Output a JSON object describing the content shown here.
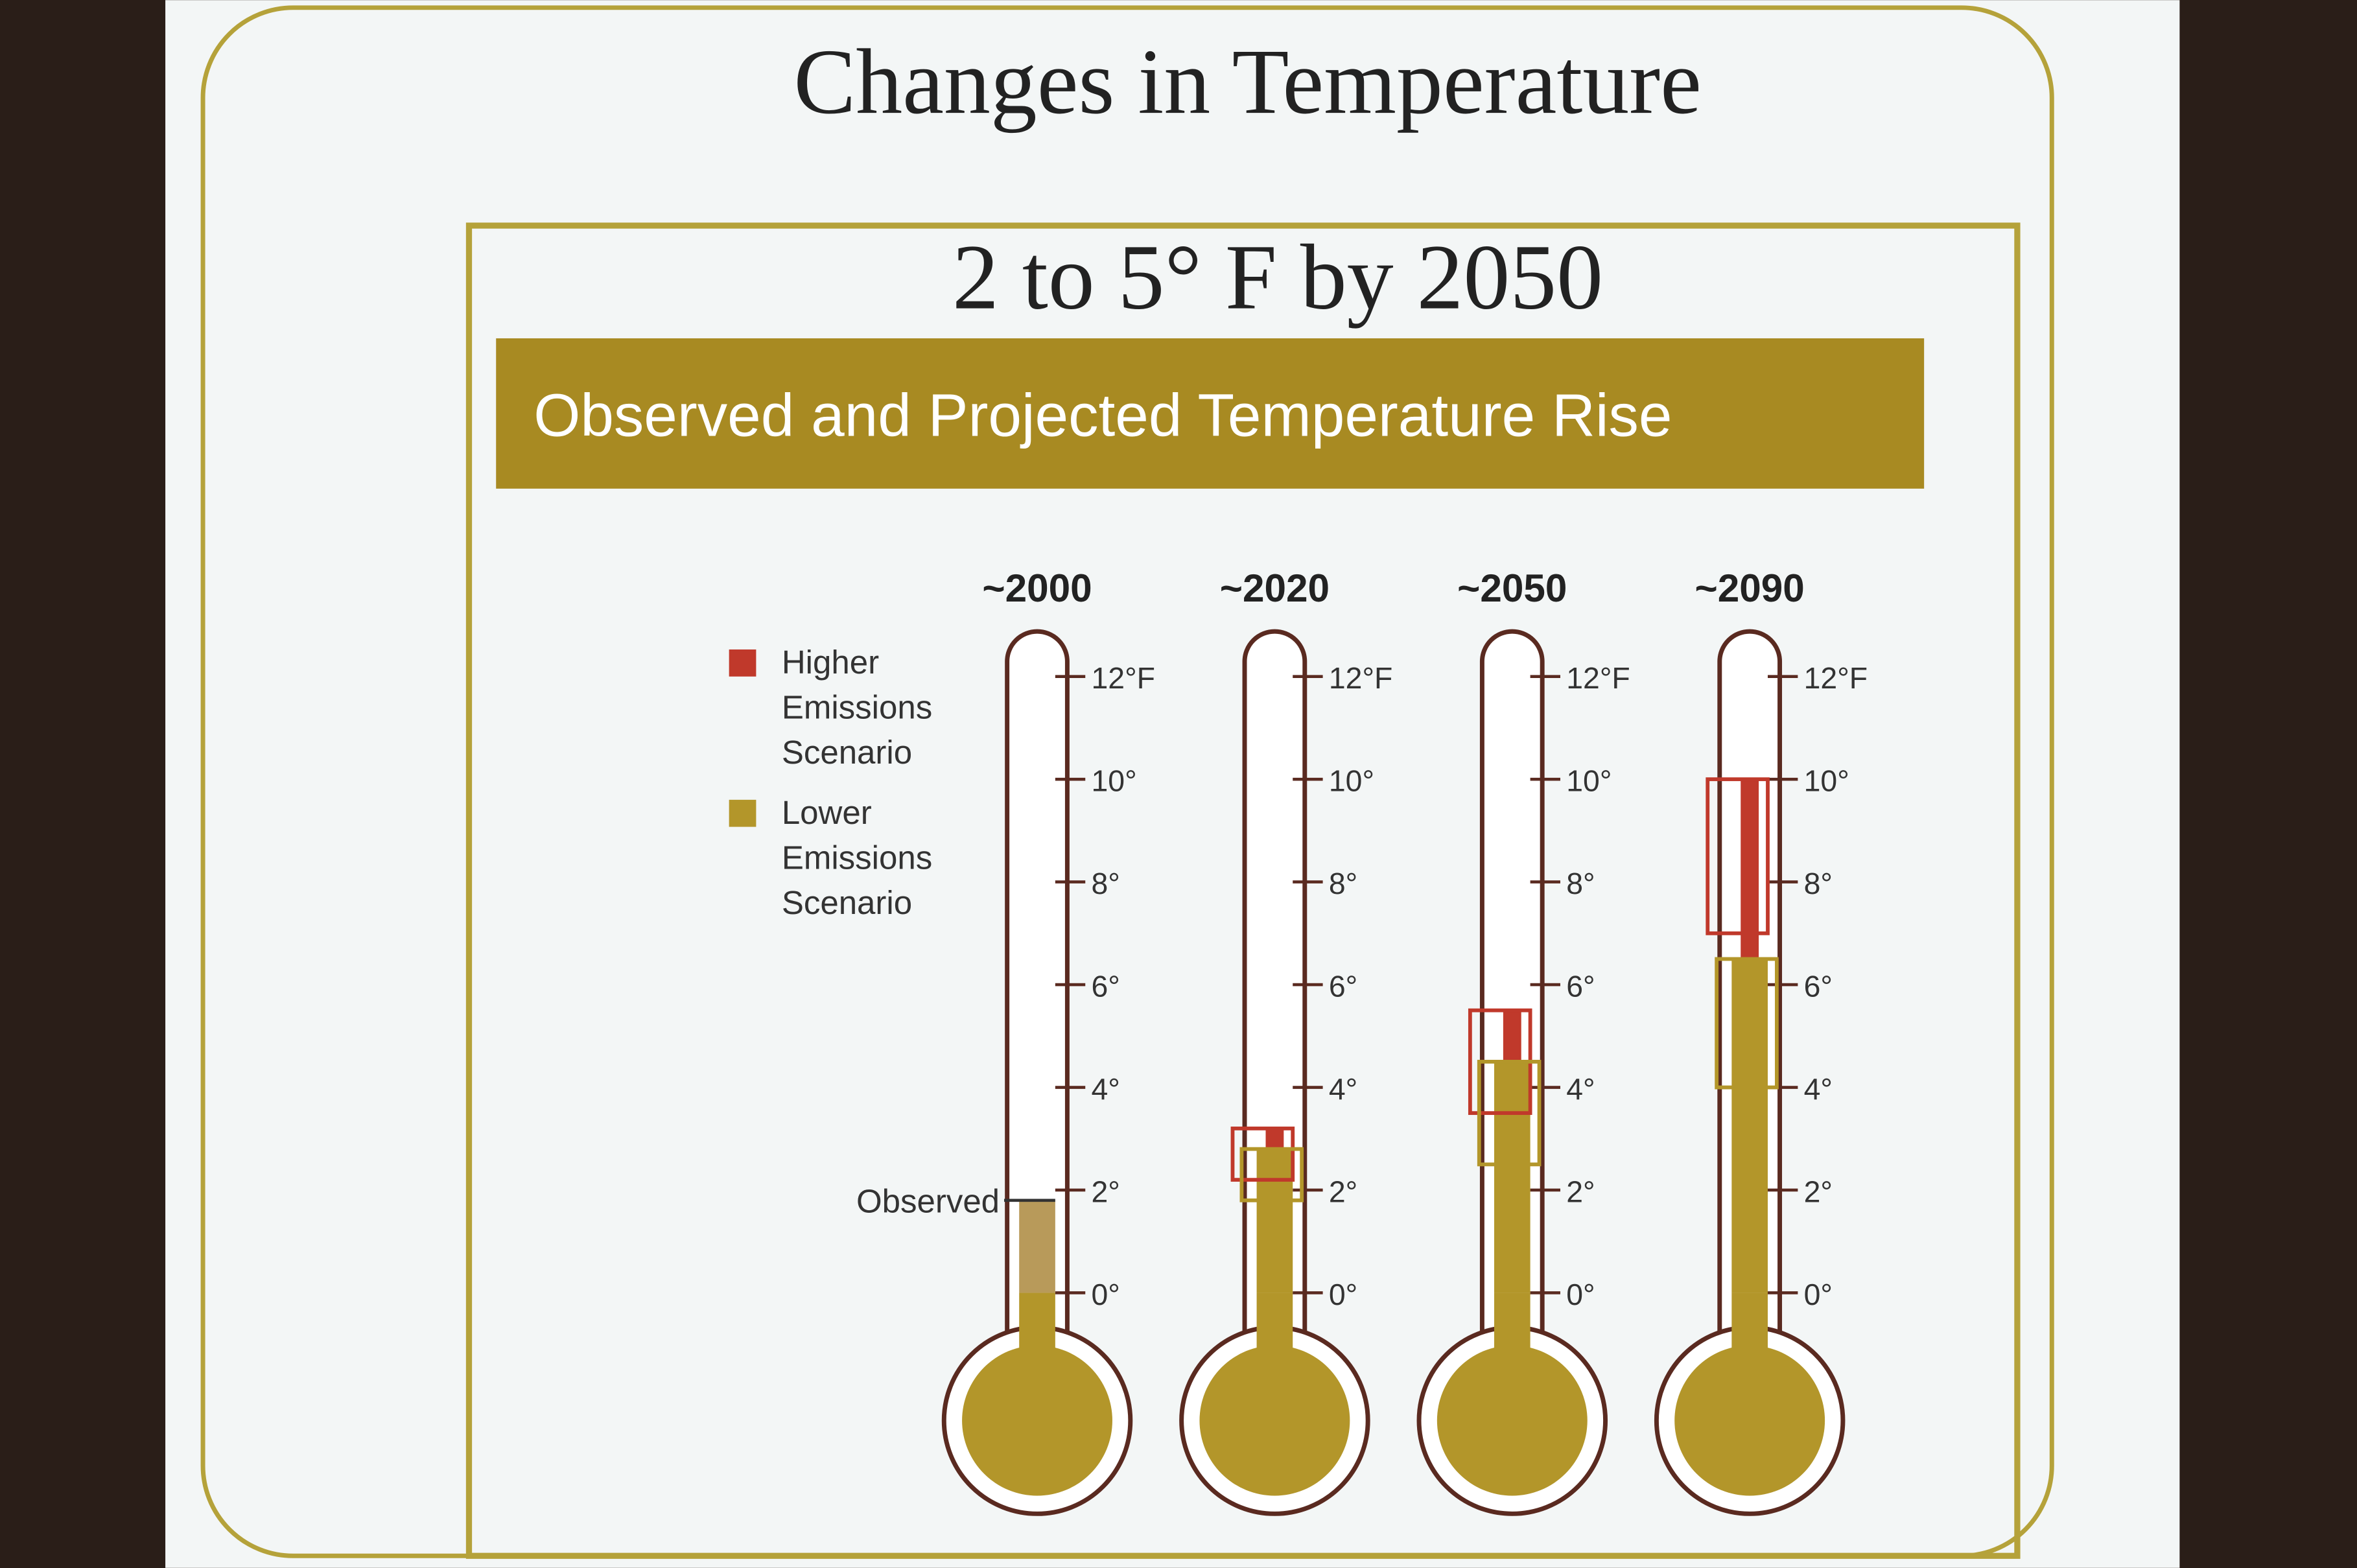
{
  "slide_title": "Changes in Temperature",
  "slide_subtitle": "2 to 5° F by 2050",
  "chart_data": {
    "type": "thermometer",
    "title": "Observed and Projected Temperature Rise",
    "categories": [
      "~2000",
      "~2020",
      "~2050",
      "~2090"
    ],
    "series": [
      {
        "name": "Higher Emissions Scenario",
        "color": "#c0392b",
        "values": [
          null,
          [
            2.2,
            3.2
          ],
          [
            3.5,
            5.5
          ],
          [
            7,
            10
          ]
        ]
      },
      {
        "name": "Lower Emissions Scenario",
        "color": "#b3962a",
        "values": [
          null,
          [
            1.8,
            2.8
          ],
          [
            2.5,
            4.5
          ],
          [
            4,
            6.5
          ]
        ]
      }
    ],
    "observed": {
      "label": "Observed",
      "value": 1.8
    },
    "ylim": [
      0,
      12
    ],
    "yticks": [
      {
        "value": 0,
        "label": "0°"
      },
      {
        "value": 2,
        "label": "2°"
      },
      {
        "value": 4,
        "label": "4°"
      },
      {
        "value": 6,
        "label": "6°"
      },
      {
        "value": 8,
        "label": "8°"
      },
      {
        "value": 10,
        "label": "10°"
      },
      {
        "value": 12,
        "label": "12°F"
      }
    ]
  }
}
